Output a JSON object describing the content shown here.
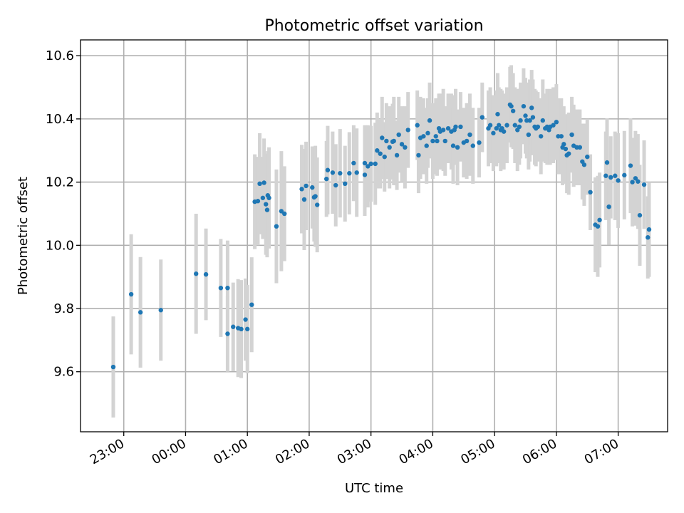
{
  "chart_data": {
    "type": "scatter",
    "title": "Photometric offset variation",
    "xlabel": "UTC time",
    "ylabel": "Photometric offset",
    "x_unit": "hours UTC (values after 24 are next day)",
    "xlim": [
      22.3,
      31.8
    ],
    "ylim": [
      9.41,
      10.65
    ],
    "x_ticks": [
      {
        "value": 23,
        "label": "23:00"
      },
      {
        "value": 24,
        "label": "00:00"
      },
      {
        "value": 25,
        "label": "01:00"
      },
      {
        "value": 26,
        "label": "02:00"
      },
      {
        "value": 27,
        "label": "03:00"
      },
      {
        "value": 28,
        "label": "04:00"
      },
      {
        "value": 29,
        "label": "05:00"
      },
      {
        "value": 30,
        "label": "06:00"
      },
      {
        "value": 31,
        "label": "07:00"
      }
    ],
    "y_ticks": [
      {
        "value": 9.6,
        "label": "9.6"
      },
      {
        "value": 9.8,
        "label": "9.8"
      },
      {
        "value": 10.0,
        "label": "10.0"
      },
      {
        "value": 10.2,
        "label": "10.2"
      },
      {
        "value": 10.4,
        "label": "10.4"
      },
      {
        "value": 10.6,
        "label": "10.6"
      }
    ],
    "grid": true,
    "colors": {
      "points": "#1f77b4",
      "error_bars": "#d3d3d3",
      "grid": "#b0b0b0"
    },
    "points": [
      [
        22.83,
        9.615,
        0.16
      ],
      [
        23.12,
        9.845,
        0.19
      ],
      [
        23.27,
        9.788,
        0.175
      ],
      [
        23.6,
        9.795,
        0.16
      ],
      [
        24.17,
        9.91,
        0.19
      ],
      [
        24.33,
        9.908,
        0.145
      ],
      [
        24.57,
        9.865,
        0.155
      ],
      [
        24.68,
        9.865,
        0.15
      ],
      [
        24.68,
        9.72,
        0.12
      ],
      [
        24.77,
        9.742,
        0.14
      ],
      [
        24.85,
        9.738,
        0.155
      ],
      [
        24.9,
        9.735,
        0.155
      ],
      [
        24.97,
        9.765,
        0.13
      ],
      [
        25.0,
        9.735,
        0.14
      ],
      [
        25.07,
        9.812,
        0.15
      ],
      [
        25.12,
        10.138,
        0.15
      ],
      [
        25.17,
        10.14,
        0.14
      ],
      [
        25.2,
        10.195,
        0.16
      ],
      [
        25.25,
        10.15,
        0.13
      ],
      [
        25.27,
        10.198,
        0.14
      ],
      [
        25.3,
        10.13,
        0.16
      ],
      [
        25.32,
        10.112,
        0.15
      ],
      [
        25.33,
        10.158,
        0.14
      ],
      [
        25.35,
        10.15,
        0.16
      ],
      [
        25.47,
        10.06,
        0.18
      ],
      [
        25.55,
        10.108,
        0.19
      ],
      [
        25.6,
        10.1,
        0.15
      ],
      [
        25.88,
        10.178,
        0.14
      ],
      [
        25.92,
        10.145,
        0.16
      ],
      [
        25.95,
        10.188,
        0.14
      ],
      [
        26.05,
        10.183,
        0.13
      ],
      [
        26.08,
        10.152,
        0.14
      ],
      [
        26.1,
        10.155,
        0.16
      ],
      [
        26.13,
        10.128,
        0.15
      ],
      [
        26.28,
        10.21,
        0.12
      ],
      [
        26.3,
        10.238,
        0.14
      ],
      [
        26.38,
        10.23,
        0.13
      ],
      [
        26.43,
        10.19,
        0.13
      ],
      [
        26.5,
        10.228,
        0.14
      ],
      [
        26.58,
        10.195,
        0.12
      ],
      [
        26.65,
        10.228,
        0.13
      ],
      [
        26.72,
        10.26,
        0.12
      ],
      [
        26.77,
        10.23,
        0.14
      ],
      [
        26.9,
        10.223,
        0.13
      ],
      [
        26.9,
        10.26,
        0.12
      ],
      [
        26.95,
        10.25,
        0.13
      ],
      [
        27.0,
        10.258,
        0.12
      ],
      [
        27.07,
        10.258,
        0.13
      ],
      [
        27.1,
        10.3,
        0.12
      ],
      [
        27.15,
        10.29,
        0.11
      ],
      [
        27.18,
        10.34,
        0.13
      ],
      [
        27.22,
        10.28,
        0.11
      ],
      [
        27.25,
        10.33,
        0.12
      ],
      [
        27.3,
        10.31,
        0.13
      ],
      [
        27.35,
        10.328,
        0.12
      ],
      [
        27.37,
        10.33,
        0.14
      ],
      [
        27.42,
        10.285,
        0.11
      ],
      [
        27.45,
        10.35,
        0.12
      ],
      [
        27.5,
        10.32,
        0.12
      ],
      [
        27.55,
        10.31,
        0.13
      ],
      [
        27.6,
        10.365,
        0.12
      ],
      [
        27.75,
        10.38,
        0.11
      ],
      [
        27.77,
        10.285,
        0.12
      ],
      [
        27.8,
        10.34,
        0.13
      ],
      [
        27.85,
        10.345,
        0.12
      ],
      [
        27.9,
        10.315,
        0.12
      ],
      [
        27.92,
        10.355,
        0.11
      ],
      [
        27.95,
        10.395,
        0.12
      ],
      [
        28.0,
        10.33,
        0.12
      ],
      [
        28.05,
        10.345,
        0.12
      ],
      [
        28.07,
        10.33,
        0.11
      ],
      [
        28.1,
        10.37,
        0.11
      ],
      [
        28.12,
        10.36,
        0.12
      ],
      [
        28.17,
        10.365,
        0.13
      ],
      [
        28.2,
        10.33,
        0.11
      ],
      [
        28.25,
        10.37,
        0.11
      ],
      [
        28.3,
        10.36,
        0.12
      ],
      [
        28.33,
        10.315,
        0.12
      ],
      [
        28.35,
        10.365,
        0.11
      ],
      [
        28.37,
        10.375,
        0.12
      ],
      [
        28.4,
        10.31,
        0.12
      ],
      [
        28.45,
        10.375,
        0.11
      ],
      [
        28.5,
        10.325,
        0.11
      ],
      [
        28.55,
        10.33,
        0.12
      ],
      [
        28.6,
        10.35,
        0.13
      ],
      [
        28.65,
        10.315,
        0.12
      ],
      [
        28.75,
        10.325,
        0.11
      ],
      [
        28.8,
        10.405,
        0.11
      ],
      [
        28.9,
        10.37,
        0.12
      ],
      [
        28.93,
        10.38,
        0.12
      ],
      [
        28.98,
        10.355,
        0.12
      ],
      [
        29.03,
        10.37,
        0.12
      ],
      [
        29.05,
        10.415,
        0.13
      ],
      [
        29.07,
        10.38,
        0.12
      ],
      [
        29.1,
        10.365,
        0.13
      ],
      [
        29.12,
        10.37,
        0.12
      ],
      [
        29.15,
        10.36,
        0.12
      ],
      [
        29.2,
        10.38,
        0.12
      ],
      [
        29.25,
        10.445,
        0.12
      ],
      [
        29.27,
        10.44,
        0.13
      ],
      [
        29.3,
        10.425,
        0.12
      ],
      [
        29.33,
        10.38,
        0.12
      ],
      [
        29.37,
        10.365,
        0.13
      ],
      [
        29.4,
        10.375,
        0.12
      ],
      [
        29.42,
        10.395,
        0.12
      ],
      [
        29.47,
        10.44,
        0.12
      ],
      [
        29.5,
        10.41,
        0.12
      ],
      [
        29.52,
        10.395,
        0.12
      ],
      [
        29.55,
        10.35,
        0.11
      ],
      [
        29.57,
        10.395,
        0.13
      ],
      [
        29.6,
        10.435,
        0.12
      ],
      [
        29.62,
        10.405,
        0.12
      ],
      [
        29.65,
        10.375,
        0.12
      ],
      [
        29.67,
        10.37,
        0.12
      ],
      [
        29.7,
        10.375,
        0.11
      ],
      [
        29.75,
        10.345,
        0.12
      ],
      [
        29.78,
        10.395,
        0.13
      ],
      [
        29.82,
        10.37,
        0.11
      ],
      [
        29.85,
        10.375,
        0.12
      ],
      [
        29.88,
        10.365,
        0.11
      ],
      [
        29.9,
        10.375,
        0.12
      ],
      [
        29.95,
        10.38,
        0.12
      ],
      [
        30.0,
        10.39,
        0.12
      ],
      [
        30.03,
        10.345,
        0.12
      ],
      [
        30.08,
        10.345,
        0.12
      ],
      [
        30.1,
        10.31,
        0.12
      ],
      [
        30.12,
        10.32,
        0.12
      ],
      [
        30.15,
        10.305,
        0.11
      ],
      [
        30.17,
        10.285,
        0.12
      ],
      [
        30.2,
        10.29,
        0.13
      ],
      [
        30.25,
        10.35,
        0.12
      ],
      [
        30.28,
        10.315,
        0.13
      ],
      [
        30.33,
        10.31,
        0.12
      ],
      [
        30.38,
        10.31,
        0.12
      ],
      [
        30.42,
        10.265,
        0.12
      ],
      [
        30.45,
        10.255,
        0.13
      ],
      [
        30.5,
        10.28,
        0.12
      ],
      [
        30.55,
        10.168,
        0.12
      ],
      [
        30.63,
        10.065,
        0.15
      ],
      [
        30.67,
        10.06,
        0.16
      ],
      [
        30.7,
        10.08,
        0.15
      ],
      [
        30.8,
        10.22,
        0.14
      ],
      [
        30.82,
        10.262,
        0.14
      ],
      [
        30.85,
        10.122,
        0.12
      ],
      [
        30.88,
        10.215,
        0.13
      ],
      [
        30.95,
        10.22,
        0.14
      ],
      [
        31.0,
        10.205,
        0.15
      ],
      [
        31.1,
        10.222,
        0.14
      ],
      [
        31.2,
        10.252,
        0.15
      ],
      [
        31.23,
        10.2,
        0.14
      ],
      [
        31.28,
        10.212,
        0.15
      ],
      [
        31.32,
        10.202,
        0.15
      ],
      [
        31.35,
        10.095,
        0.16
      ],
      [
        31.42,
        10.192,
        0.14
      ],
      [
        31.48,
        10.025,
        0.13
      ],
      [
        31.5,
        10.05,
        0.15
      ]
    ]
  }
}
